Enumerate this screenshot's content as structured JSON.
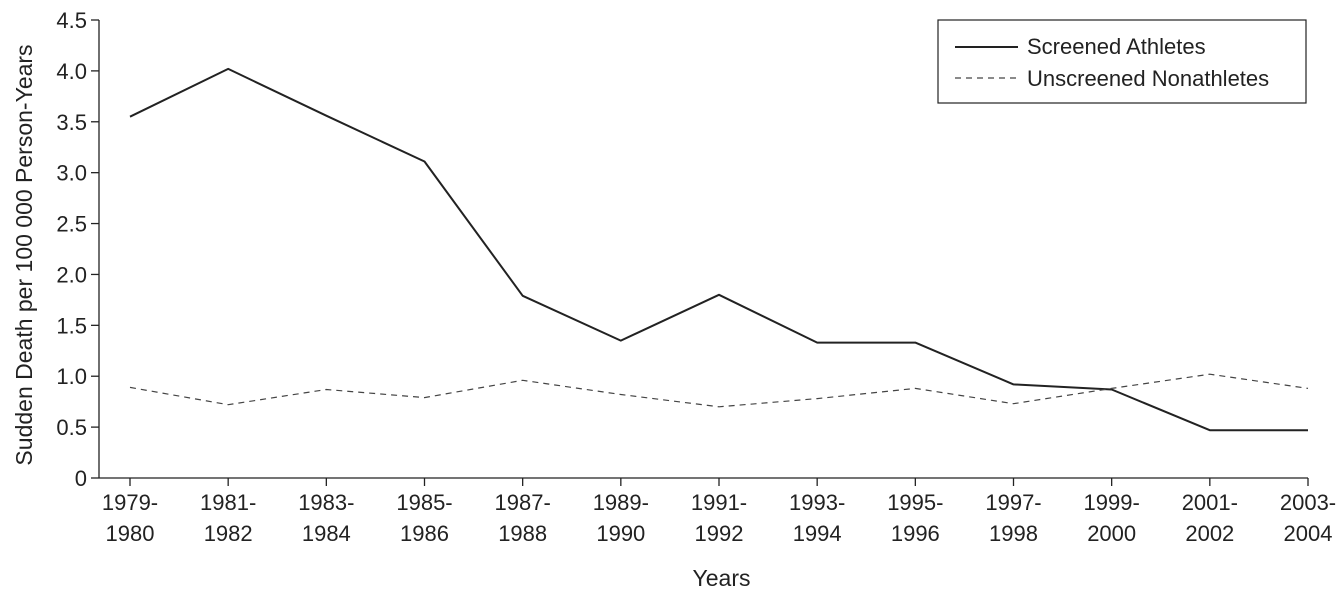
{
  "chart_data": {
    "type": "line",
    "xlabel": "Years",
    "ylabel": "Sudden Death per 100 000 Person-Years",
    "ylim": [
      0,
      4.5
    ],
    "yticks": [
      "0",
      "0.5",
      "1.0",
      "1.5",
      "2.0",
      "2.5",
      "3.0",
      "3.5",
      "4.0",
      "4.5"
    ],
    "categories": [
      [
        "1979-",
        "1980"
      ],
      [
        "1981-",
        "1982"
      ],
      [
        "1983-",
        "1984"
      ],
      [
        "1985-",
        "1986"
      ],
      [
        "1987-",
        "1988"
      ],
      [
        "1989-",
        "1990"
      ],
      [
        "1991-",
        "1992"
      ],
      [
        "1993-",
        "1994"
      ],
      [
        "1995-",
        "1996"
      ],
      [
        "1997-",
        "1998"
      ],
      [
        "1999-",
        "2000"
      ],
      [
        "2001-",
        "2002"
      ],
      [
        "2003-",
        "2004"
      ]
    ],
    "series": [
      {
        "name": "Screened Athletes",
        "style": "solid",
        "values": [
          3.55,
          4.02,
          3.56,
          3.11,
          1.79,
          1.35,
          1.8,
          1.33,
          1.33,
          0.92,
          0.87,
          0.47,
          0.47
        ]
      },
      {
        "name": "Unscreened Nonathletes",
        "style": "dashed",
        "values": [
          0.89,
          0.72,
          0.87,
          0.79,
          0.96,
          0.82,
          0.7,
          0.78,
          0.88,
          0.73,
          0.88,
          1.02,
          0.88
        ]
      }
    ],
    "legend_position": "top-right",
    "grid": false,
    "line_color": "#222222"
  }
}
